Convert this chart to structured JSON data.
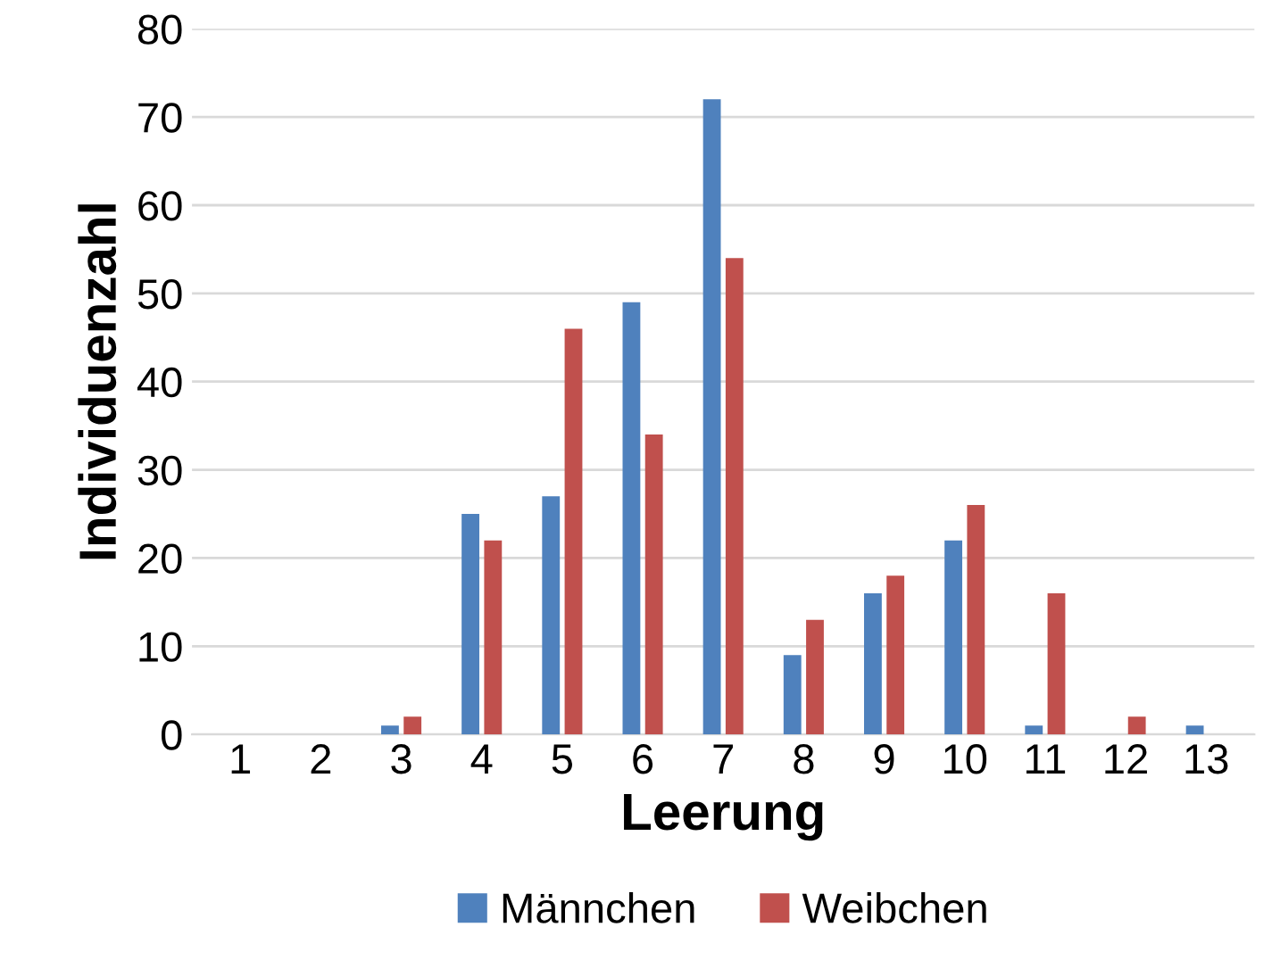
{
  "chart_data": {
    "type": "bar",
    "xlabel": "Leerung",
    "ylabel": "Individuenzahl",
    "categories": [
      "1",
      "2",
      "3",
      "4",
      "5",
      "6",
      "7",
      "8",
      "9",
      "10",
      "11",
      "12",
      "13"
    ],
    "series": [
      {
        "name": "Männchen",
        "color": "#4f81bd",
        "values": [
          0,
          0,
          1,
          25,
          27,
          49,
          72,
          9,
          16,
          22,
          1,
          0,
          1
        ]
      },
      {
        "name": "Weibchen",
        "color": "#c0504d",
        "values": [
          0,
          0,
          2,
          22,
          46,
          34,
          54,
          13,
          18,
          26,
          16,
          2,
          0
        ]
      }
    ],
    "ylim": [
      0,
      80
    ],
    "yticks": [
      0,
      10,
      20,
      30,
      40,
      50,
      60,
      70,
      80
    ],
    "grid": "y",
    "legend": "bottom"
  }
}
